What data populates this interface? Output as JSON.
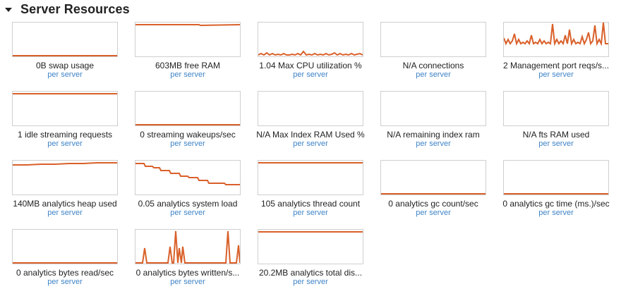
{
  "section": {
    "title": "Server Resources",
    "caret_icon": "caret-down-icon"
  },
  "colors": {
    "line": "#d9602a",
    "border": "#cfcfcf",
    "sublink": "#3f84c7"
  },
  "stats": [
    {
      "label": "0B swap usage",
      "sub": "per server"
    },
    {
      "label": "603MB free RAM",
      "sub": "per server"
    },
    {
      "label": "1.04 Max CPU utilization %",
      "sub": "per server"
    },
    {
      "label": "N/A connections",
      "sub": "per server"
    },
    {
      "label": "2 Management port reqs/s...",
      "sub": "per server"
    },
    {
      "label": "1 idle streaming requests",
      "sub": "per server"
    },
    {
      "label": "0 streaming wakeups/sec",
      "sub": "per server"
    },
    {
      "label": "N/A Max Index RAM Used %",
      "sub": "per server"
    },
    {
      "label": "N/A remaining index ram",
      "sub": "per server"
    },
    {
      "label": "N/A fts RAM used",
      "sub": "per server"
    },
    {
      "label": "140MB analytics heap used",
      "sub": "per server"
    },
    {
      "label": "0.05 analytics system load",
      "sub": "per server"
    },
    {
      "label": "105 analytics thread count",
      "sub": "per server"
    },
    {
      "label": "0 analytics gc count/sec",
      "sub": "per server"
    },
    {
      "label": "0 analytics gc time (ms.)/sec",
      "sub": "per server"
    },
    {
      "label": "0 analytics bytes read/sec",
      "sub": "per server"
    },
    {
      "label": "0 analytics bytes written/s...",
      "sub": "per server"
    },
    {
      "label": "20.2MB analytics total dis...",
      "sub": "per server"
    }
  ]
}
